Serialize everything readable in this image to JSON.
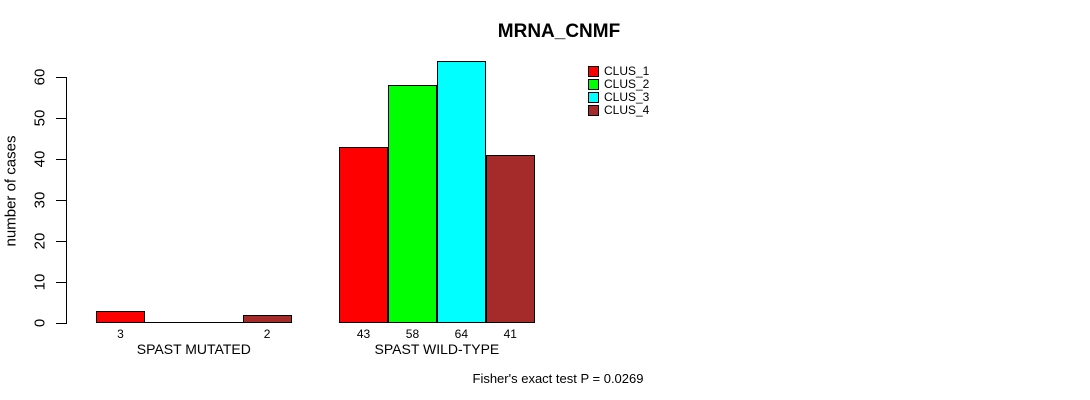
{
  "chart_data": {
    "type": "bar",
    "title": "MRNA_CNMF",
    "ylabel": "number of cases",
    "xlabel": "",
    "ylim": [
      0,
      60
    ],
    "yticks": [
      0,
      10,
      20,
      30,
      40,
      50,
      60
    ],
    "grid": false,
    "legend_position": "top-right",
    "annotation": "Fisher's exact test P = 0.0269",
    "series": [
      {
        "name": "CLUS_1",
        "color": "#FF0000"
      },
      {
        "name": "CLUS_2",
        "color": "#00FF00"
      },
      {
        "name": "CLUS_3",
        "color": "#00FFFF"
      },
      {
        "name": "CLUS_4",
        "color": "#A52A2A"
      }
    ],
    "groups": [
      {
        "label": "SPAST MUTATED",
        "values": [
          3,
          0,
          0,
          2
        ],
        "bar_labels": [
          "3",
          "",
          "",
          "2"
        ]
      },
      {
        "label": "SPAST WILD-TYPE",
        "values": [
          43,
          58,
          64,
          41
        ],
        "bar_labels": [
          "43",
          "58",
          "64",
          "41"
        ]
      }
    ]
  }
}
